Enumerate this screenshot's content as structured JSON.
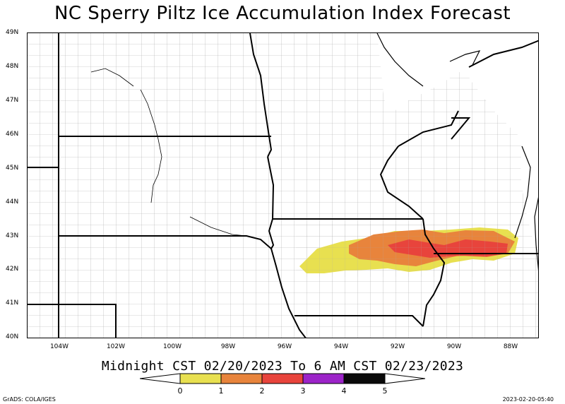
{
  "title": "NC Sperry Piltz Ice Accumulation Index Forecast",
  "valid_period": "Midnight CST 02/20/2023 To 6 AM CST 02/23/2023",
  "lat_labels": [
    "49N",
    "48N",
    "47N",
    "46N",
    "45N",
    "44N",
    "43N",
    "42N",
    "41N",
    "40N"
  ],
  "lon_labels": [
    "104W",
    "102W",
    "100W",
    "98W",
    "96W",
    "94W",
    "92W",
    "90W",
    "88W"
  ],
  "legend": {
    "ticks": [
      "0",
      "1",
      "2",
      "3",
      "4",
      "5"
    ],
    "colors": [
      "#e8e050",
      "#e8843c",
      "#e8443c",
      "#9c24c8",
      "#0a0a0a"
    ]
  },
  "credit": "GrADS: COLA/IGES",
  "timestamp": "2023-02-20-05:40",
  "colors": {
    "index_0_1": "#e8e050",
    "index_1_2": "#e8843c",
    "index_2_3": "#e8443c",
    "index_3_4": "#9c24c8",
    "index_4_5": "#0a0a0a",
    "state_border": "#000000",
    "county_border": "#a0a0a0"
  }
}
